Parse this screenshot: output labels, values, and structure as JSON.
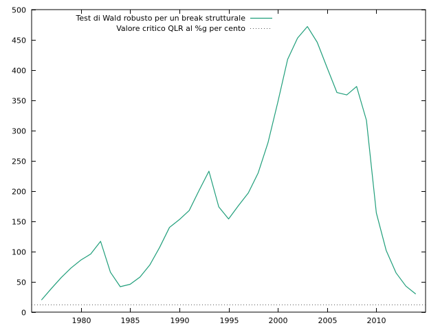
{
  "chart_data": {
    "type": "line",
    "title": "",
    "xlabel": "",
    "ylabel": "",
    "xlim": [
      1975,
      2015
    ],
    "ylim": [
      0,
      500
    ],
    "xticks": [
      1980,
      1985,
      1990,
      1995,
      2000,
      2005,
      2010
    ],
    "yticks": [
      0,
      50,
      100,
      150,
      200,
      250,
      300,
      350,
      400,
      450,
      500
    ],
    "grid": false,
    "legend_position": "top-right",
    "series": [
      {
        "name": "Test di Wald robusto per un break strutturale",
        "color": "#1f9e7a",
        "style": "solid",
        "x": [
          1976,
          1977,
          1978,
          1979,
          1980,
          1981,
          1982,
          1983,
          1984,
          1985,
          1986,
          1987,
          1988,
          1989,
          1990,
          1991,
          1992,
          1993,
          1994,
          1995,
          1996,
          1997,
          1998,
          1999,
          2000,
          2001,
          2002,
          2003,
          2004,
          2005,
          2006,
          2007,
          2008,
          2009,
          2010,
          2011,
          2012,
          2013,
          2014
        ],
        "y": [
          20,
          39,
          57,
          73,
          86,
          96,
          117,
          66,
          42,
          46,
          58,
          78,
          107,
          140,
          153,
          168,
          201,
          233,
          174,
          154,
          176,
          197,
          230,
          280,
          347,
          418,
          453,
          472,
          446,
          404,
          363,
          359,
          373,
          317,
          164,
          102,
          65,
          43,
          30
        ]
      },
      {
        "name": "Valore critico QLR al %g per cento",
        "color": "#555555",
        "style": "dotted",
        "x": [
          1975,
          2015
        ],
        "y": [
          12,
          12
        ]
      }
    ]
  }
}
